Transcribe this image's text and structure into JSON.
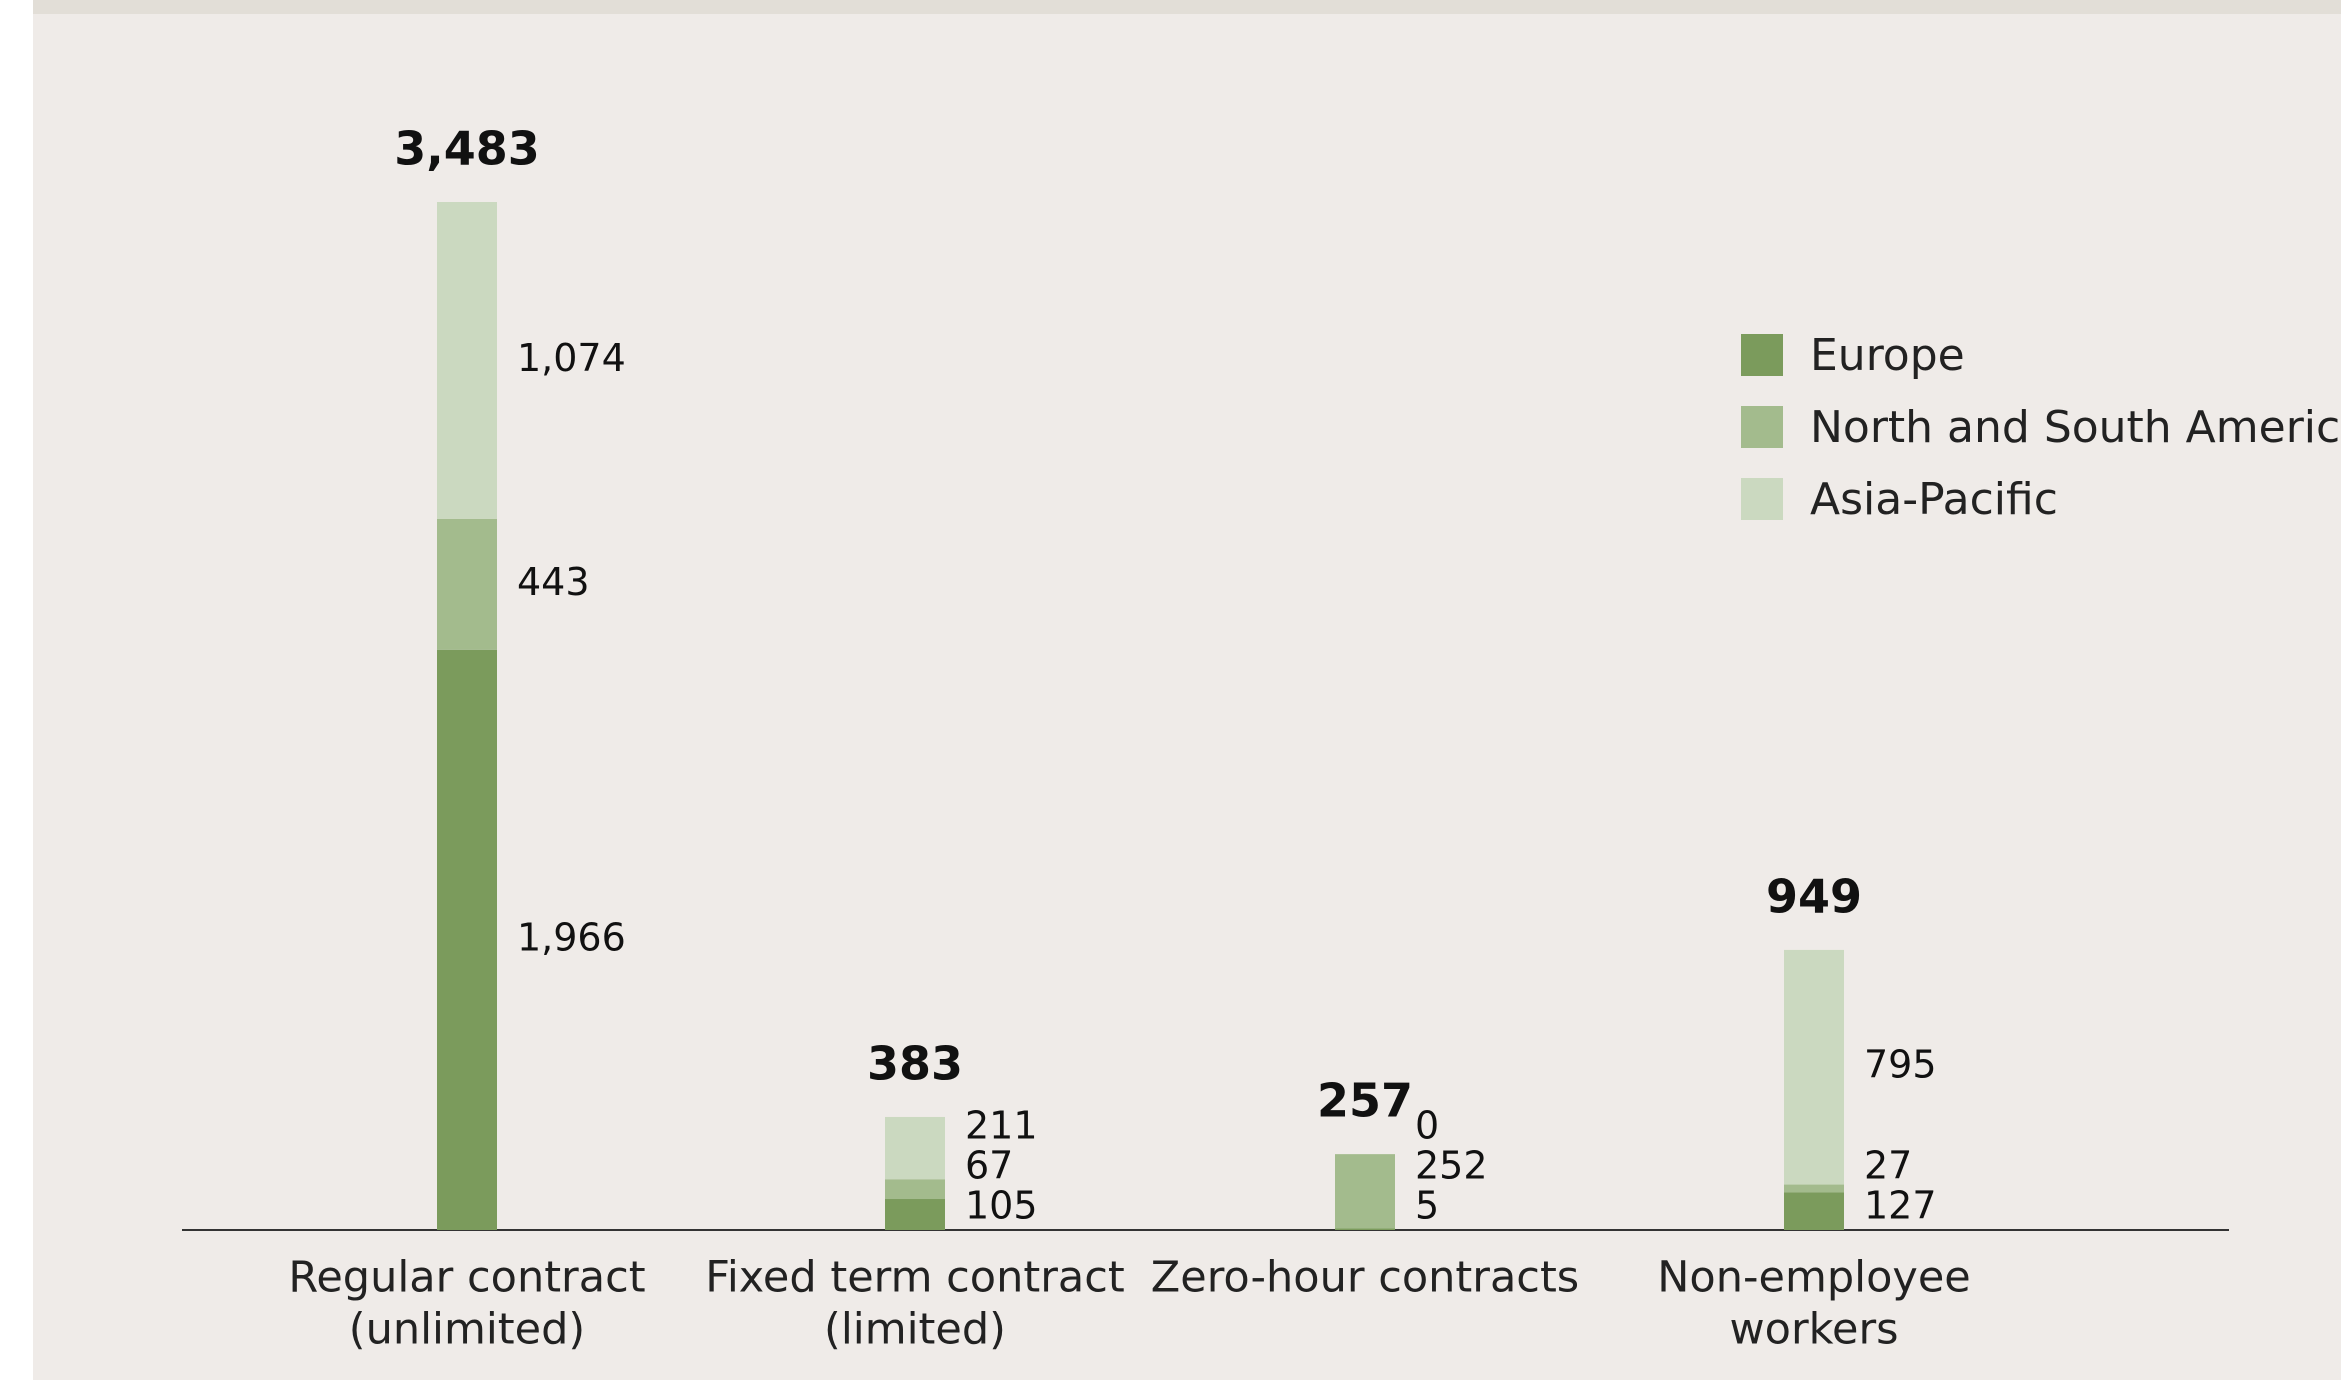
{
  "chart_data": {
    "type": "stacked_bar",
    "categories": [
      [
        "Regular contract",
        "(unlimited)"
      ],
      [
        "Fixed term contract",
        "(limited)"
      ],
      [
        "Zero-hour contracts"
      ],
      [
        "Non-employee",
        "workers"
      ]
    ],
    "series": [
      {
        "name": "Europe",
        "color": "#7b9b5c",
        "values": [
          1966,
          105,
          5,
          127
        ],
        "value_labels": [
          "1,966",
          "105",
          "5",
          "127"
        ]
      },
      {
        "name": "North and South America",
        "color": "#a3bb8d",
        "values": [
          443,
          67,
          252,
          27
        ],
        "value_labels": [
          "443",
          "67",
          "252",
          "27"
        ]
      },
      {
        "name": "Asia-Pacific",
        "color": "#cbd9c0",
        "values": [
          1074,
          211,
          0,
          795
        ],
        "value_labels": [
          "1,074",
          "211",
          "0",
          "795"
        ]
      }
    ],
    "totals": [
      3483,
      383,
      257,
      949
    ],
    "total_labels": [
      "3,483",
      "383",
      "257",
      "949"
    ],
    "legend": "upper right"
  }
}
